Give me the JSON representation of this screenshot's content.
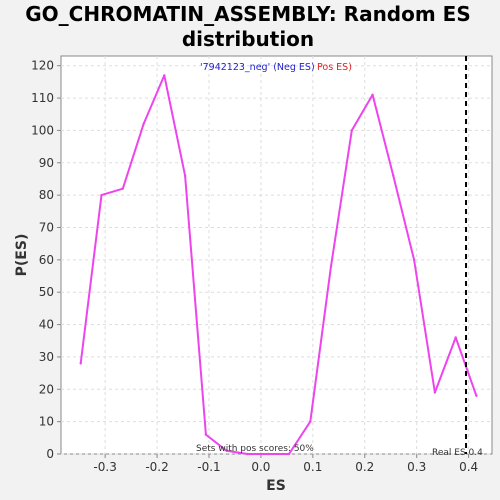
{
  "chart_data": {
    "type": "line",
    "title_line1": "GO_CHROMATIN_ASSEMBLY: Random ES",
    "title_line2": "distribution",
    "xlabel": "ES",
    "ylabel": "P(ES)",
    "xlim": [
      -0.385,
      0.445
    ],
    "ylim": [
      0,
      123
    ],
    "x_ticks": [
      -0.3,
      -0.2,
      -0.1,
      0.0,
      0.1,
      0.2,
      0.3,
      0.4
    ],
    "x_tick_labels": [
      "-0.3",
      "-0.2",
      "-0.1",
      "0.0",
      "0.1",
      "0.2",
      "0.3",
      "0.4"
    ],
    "y_ticks": [
      0,
      10,
      20,
      30,
      40,
      50,
      60,
      70,
      80,
      90,
      100,
      110,
      120
    ],
    "y_tick_labels": [
      "0",
      "10",
      "20",
      "30",
      "40",
      "50",
      "60",
      "70",
      "80",
      "90",
      "100",
      "110",
      "120"
    ],
    "grid": true,
    "series": [
      {
        "color": "#ee44ee",
        "x": [
          -0.347,
          -0.307,
          -0.266,
          -0.226,
          -0.186,
          -0.146,
          -0.106,
          -0.066,
          -0.026,
          0.014,
          0.054,
          0.095,
          0.135,
          0.175,
          0.215,
          0.255,
          0.295,
          0.335,
          0.375,
          0.415
        ],
        "y": [
          28,
          80,
          82,
          102,
          117,
          86,
          6,
          1,
          0,
          0,
          0,
          10,
          58,
          100,
          111,
          86,
          60,
          19,
          36,
          18
        ]
      }
    ],
    "real_es": {
      "value": 0.395,
      "label": "Real ES 0.4",
      "color": "#000000"
    },
    "legend": {
      "placement": "top-center",
      "part1_text": "'7942123_neg' (Neg ES)",
      "part1_color": "#2222cc",
      "part2_text": "Pos ES)",
      "part2_color": "#dd2222"
    },
    "annotation": "Sets with pos scores: 50%"
  },
  "colors": {
    "page_background": "#f2f2f2",
    "plot_background": "#ffffff",
    "grid": "#dddddd",
    "axis": "#888888"
  }
}
